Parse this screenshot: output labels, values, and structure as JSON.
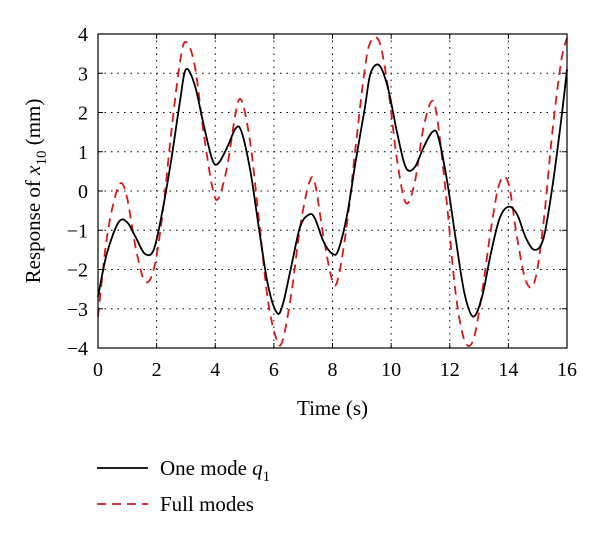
{
  "chart_data": {
    "type": "line",
    "title": "",
    "xlabel": "Time (s)",
    "ylabel": {
      "prefix": "Response of ",
      "var": "x",
      "sub": "10",
      "suffix": " (mm)"
    },
    "xlim": [
      0,
      16
    ],
    "ylim": [
      -4,
      4
    ],
    "xticks": [
      "0",
      "2",
      "4",
      "6",
      "8",
      "10",
      "12",
      "14",
      "16"
    ],
    "yticks": [
      "4",
      "3",
      "2",
      "1",
      "0",
      "−1",
      "−2",
      "−3",
      "−4"
    ],
    "grid": true,
    "legend_position": "bottom",
    "series": [
      {
        "name": "One mode",
        "name_symbol": "q",
        "name_sub": "1",
        "color": "#000000",
        "style": "solid",
        "x": [
          0,
          0.3,
          0.7,
          1.0,
          1.3,
          1.6,
          1.9,
          2.2,
          2.5,
          2.8,
          3.0,
          3.3,
          3.6,
          3.9,
          4.1,
          4.4,
          4.7,
          4.9,
          5.2,
          5.5,
          5.8,
          6.1,
          6.3,
          6.6,
          6.9,
          7.2,
          7.4,
          7.7,
          8.0,
          8.2,
          8.5,
          8.8,
          9.1,
          9.3,
          9.6,
          9.9,
          10.2,
          10.5,
          10.8,
          11.1,
          11.4,
          11.6,
          11.9,
          12.2,
          12.5,
          12.8,
          13.1,
          13.4,
          13.7,
          14.0,
          14.3,
          14.6,
          14.9,
          15.2,
          15.5,
          15.8,
          16.0
        ],
        "y": [
          -2.7,
          -1.6,
          -0.8,
          -0.8,
          -1.2,
          -1.6,
          -1.5,
          -0.5,
          0.8,
          2.3,
          3.1,
          2.7,
          1.7,
          0.8,
          0.7,
          1.1,
          1.6,
          1.5,
          0.5,
          -1.0,
          -2.4,
          -3.1,
          -2.9,
          -1.9,
          -0.9,
          -0.6,
          -0.7,
          -1.3,
          -1.6,
          -1.5,
          -0.6,
          0.8,
          2.1,
          3.0,
          3.2,
          2.6,
          1.5,
          0.6,
          0.6,
          1.1,
          1.5,
          1.4,
          0.3,
          -1.2,
          -2.6,
          -3.2,
          -2.7,
          -1.6,
          -0.7,
          -0.4,
          -0.6,
          -1.2,
          -1.5,
          -1.2,
          0.1,
          1.8,
          3.1
        ]
      },
      {
        "name": "Full modes",
        "color": "#d7191c",
        "style": "dashed",
        "x": [
          0,
          0.3,
          0.6,
          0.8,
          1.0,
          1.3,
          1.6,
          1.9,
          2.2,
          2.5,
          2.8,
          3.0,
          3.3,
          3.6,
          3.9,
          4.1,
          4.4,
          4.7,
          4.9,
          5.2,
          5.5,
          5.8,
          6.1,
          6.3,
          6.6,
          6.9,
          7.2,
          7.4,
          7.7,
          8.0,
          8.2,
          8.5,
          8.8,
          9.1,
          9.3,
          9.6,
          9.9,
          10.2,
          10.5,
          10.8,
          11.1,
          11.4,
          11.6,
          11.9,
          12.2,
          12.5,
          12.8,
          13.1,
          13.4,
          13.7,
          14.0,
          14.3,
          14.6,
          14.9,
          15.2,
          15.5,
          15.8,
          16.0
        ],
        "y": [
          -3.2,
          -1.2,
          -0.1,
          0.2,
          -0.2,
          -1.5,
          -2.3,
          -2.0,
          -0.6,
          1.5,
          3.3,
          3.8,
          3.2,
          1.5,
          0.1,
          -0.2,
          0.6,
          2.0,
          2.3,
          1.2,
          -0.8,
          -2.8,
          -3.8,
          -3.8,
          -2.6,
          -0.9,
          0.2,
          0.2,
          -1.2,
          -2.3,
          -2.2,
          -0.8,
          1.2,
          3.1,
          3.8,
          3.8,
          2.6,
          0.8,
          -0.3,
          0.2,
          1.6,
          2.3,
          1.7,
          -0.3,
          -2.6,
          -3.8,
          -3.8,
          -2.6,
          -1.0,
          0.2,
          0.2,
          -1.2,
          -2.3,
          -2.3,
          -0.8,
          1.5,
          3.3,
          3.9
        ]
      }
    ]
  }
}
